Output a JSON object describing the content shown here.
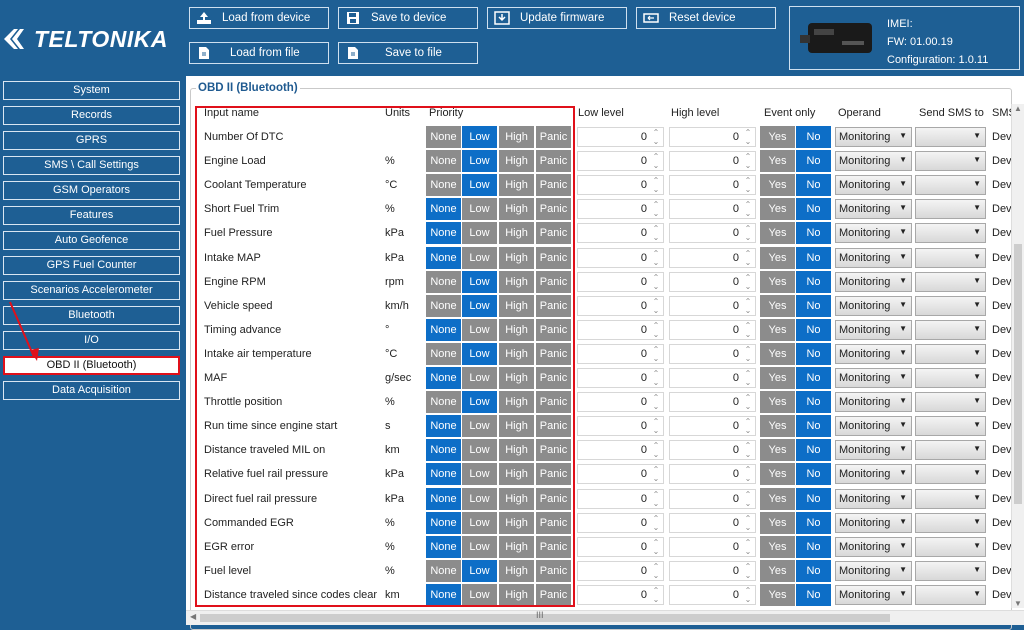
{
  "brand": {
    "name": "TELTONIKA"
  },
  "toolbar": {
    "load_device": "Load from device",
    "save_device": "Save to device",
    "update_firmware": "Update firmware",
    "reset_device": "Reset device",
    "load_file": "Load from file",
    "save_file": "Save to file"
  },
  "device": {
    "imei": "IMEI:",
    "fw": "FW: 01.00.19",
    "config": "Configuration: 1.0.11"
  },
  "sidebar": {
    "items": [
      {
        "label": "System"
      },
      {
        "label": "Records"
      },
      {
        "label": "GPRS"
      },
      {
        "label": "SMS \\ Call Settings"
      },
      {
        "label": "GSM Operators"
      },
      {
        "label": "Features"
      },
      {
        "label": "Auto Geofence"
      },
      {
        "label": "GPS Fuel Counter"
      },
      {
        "label": "Scenarios Accelerometer"
      },
      {
        "label": "Bluetooth"
      },
      {
        "label": "I/O"
      },
      {
        "label": "OBD II (Bluetooth)",
        "active": true
      },
      {
        "label": "Data Acquisition"
      }
    ]
  },
  "panel": {
    "title": "OBD II (Bluetooth)",
    "headers": {
      "input_name": "Input name",
      "units": "Units",
      "priority": "Priority",
      "low_level": "Low level",
      "high_level": "High level",
      "event_only": "Event only",
      "operand": "Operand",
      "send_sms": "Send SMS to",
      "sms": "SMS"
    },
    "priority_options": [
      "None",
      "Low",
      "High",
      "Panic"
    ],
    "yes_label": "Yes",
    "no_label": "No",
    "rows": [
      {
        "name": "Number Of DTC",
        "unit": "",
        "priority": "Low",
        "low": "0",
        "high": "0",
        "event_only": "No",
        "operand": "Monitoring",
        "sms_text": "Dev"
      },
      {
        "name": "Engine Load",
        "unit": "%",
        "priority": "Low",
        "low": "0",
        "high": "0",
        "event_only": "No",
        "operand": "Monitoring",
        "sms_text": "Dev"
      },
      {
        "name": "Coolant Temperature",
        "unit": "°C",
        "priority": "Low",
        "low": "0",
        "high": "0",
        "event_only": "No",
        "operand": "Monitoring",
        "sms_text": "Dev"
      },
      {
        "name": "Short Fuel Trim",
        "unit": "%",
        "priority": "None",
        "low": "0",
        "high": "0",
        "event_only": "No",
        "operand": "Monitoring",
        "sms_text": "Dev"
      },
      {
        "name": "Fuel Pressure",
        "unit": "kPa",
        "priority": "None",
        "low": "0",
        "high": "0",
        "event_only": "No",
        "operand": "Monitoring",
        "sms_text": "Dev"
      },
      {
        "name": "Intake MAP",
        "unit": "kPa",
        "priority": "None",
        "low": "0",
        "high": "0",
        "event_only": "No",
        "operand": "Monitoring",
        "sms_text": "Dev"
      },
      {
        "name": "Engine RPM",
        "unit": "rpm",
        "priority": "Low",
        "low": "0",
        "high": "0",
        "event_only": "No",
        "operand": "Monitoring",
        "sms_text": "Dev"
      },
      {
        "name": "Vehicle speed",
        "unit": "km/h",
        "priority": "Low",
        "low": "0",
        "high": "0",
        "event_only": "No",
        "operand": "Monitoring",
        "sms_text": "Dev"
      },
      {
        "name": "Timing advance",
        "unit": "°",
        "priority": "None",
        "low": "0",
        "high": "0",
        "event_only": "No",
        "operand": "Monitoring",
        "sms_text": "Dev"
      },
      {
        "name": "Intake air temperature",
        "unit": "°C",
        "priority": "Low",
        "low": "0",
        "high": "0",
        "event_only": "No",
        "operand": "Monitoring",
        "sms_text": "Dev"
      },
      {
        "name": "MAF",
        "unit": "g/sec",
        "priority": "None",
        "low": "0",
        "high": "0",
        "event_only": "No",
        "operand": "Monitoring",
        "sms_text": "Dev"
      },
      {
        "name": "Throttle position",
        "unit": "%",
        "priority": "Low",
        "low": "0",
        "high": "0",
        "event_only": "No",
        "operand": "Monitoring",
        "sms_text": "Dev"
      },
      {
        "name": "Run time since engine start",
        "unit": "s",
        "priority": "None",
        "low": "0",
        "high": "0",
        "event_only": "No",
        "operand": "Monitoring",
        "sms_text": "Dev"
      },
      {
        "name": "Distance traveled MIL on",
        "unit": "km",
        "priority": "None",
        "low": "0",
        "high": "0",
        "event_only": "No",
        "operand": "Monitoring",
        "sms_text": "Dev"
      },
      {
        "name": "Relative fuel rail pressure",
        "unit": "kPa",
        "priority": "None",
        "low": "0",
        "high": "0",
        "event_only": "No",
        "operand": "Monitoring",
        "sms_text": "Dev"
      },
      {
        "name": "Direct fuel rail pressure",
        "unit": "kPa",
        "priority": "None",
        "low": "0",
        "high": "0",
        "event_only": "No",
        "operand": "Monitoring",
        "sms_text": "Dev"
      },
      {
        "name": "Commanded EGR",
        "unit": "%",
        "priority": "None",
        "low": "0",
        "high": "0",
        "event_only": "No",
        "operand": "Monitoring",
        "sms_text": "Dev"
      },
      {
        "name": "EGR error",
        "unit": "%",
        "priority": "None",
        "low": "0",
        "high": "0",
        "event_only": "No",
        "operand": "Monitoring",
        "sms_text": "Dev"
      },
      {
        "name": "Fuel level",
        "unit": "%",
        "priority": "Low",
        "low": "0",
        "high": "0",
        "event_only": "No",
        "operand": "Monitoring",
        "sms_text": "Dev"
      },
      {
        "name": "Distance traveled since codes clear",
        "unit": "km",
        "priority": "None",
        "low": "0",
        "high": "0",
        "event_only": "No",
        "operand": "Monitoring",
        "sms_text": "Dev"
      }
    ]
  },
  "colors": {
    "brand_blue": "#1e5f94",
    "selected_blue": "#0d6ec7",
    "unselected_gray": "#8c8c8c",
    "highlight_red": "#e0101a"
  },
  "scrollbar": {
    "grip": "III"
  }
}
